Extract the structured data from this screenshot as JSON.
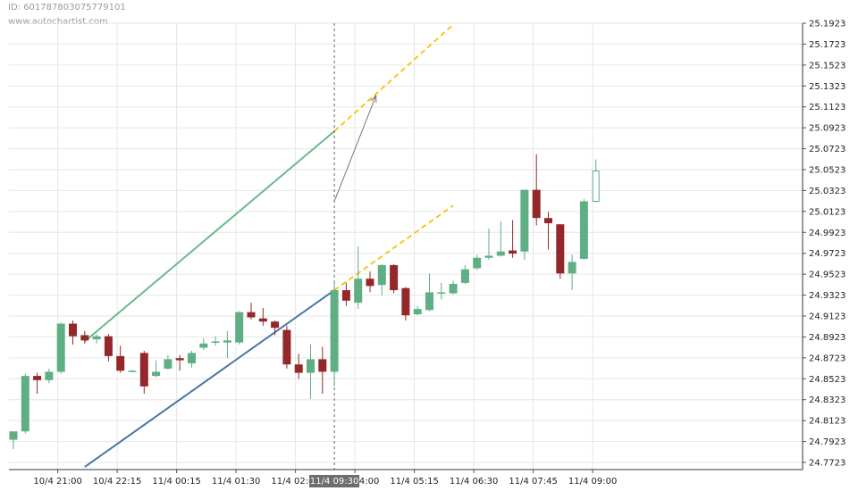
{
  "header": {
    "id_text": "ID: 601787803075779101",
    "site": "www.autochartist.com"
  },
  "colors": {
    "bull": "#5fae84",
    "bear": "#93272a",
    "upper_line": "#6ab88e",
    "lower_line": "#4a76a8",
    "projection": "#f5c400",
    "grid": "#e6e6e6"
  },
  "chart_data": {
    "type": "candlestick",
    "title": "",
    "ylim": [
      24.7723,
      25.1923
    ],
    "y_ticks": [
      "25.1923",
      "25.1723",
      "25.1523",
      "25.1323",
      "25.1123",
      "25.0923",
      "25.0723",
      "25.0523",
      "25.0323",
      "25.0123",
      "24.9923",
      "24.9723",
      "24.9523",
      "24.9323",
      "24.9123",
      "24.8923",
      "24.8723",
      "24.8523",
      "24.8323",
      "24.8123",
      "24.7923",
      "24.7723"
    ],
    "x_ticks": [
      "10/4 21:00",
      "10/4 22:15",
      "11/4 00:15",
      "11/4 01:30",
      "11/4 02:45",
      "11/4 04:00",
      "11/4 05:15",
      "11/4 06:30",
      "11/4 07:45",
      "11/4 09:00"
    ],
    "current_time_label": "11/4 09:30",
    "candles": [
      {
        "o": 24.794,
        "h": 24.8,
        "l": 24.785,
        "c": 24.802
      },
      {
        "o": 24.802,
        "h": 24.857,
        "l": 24.8,
        "c": 24.855
      },
      {
        "o": 24.855,
        "h": 24.858,
        "l": 24.838,
        "c": 24.851
      },
      {
        "o": 24.851,
        "h": 24.862,
        "l": 24.848,
        "c": 24.859
      },
      {
        "o": 24.859,
        "h": 24.906,
        "l": 24.857,
        "c": 24.905
      },
      {
        "o": 24.905,
        "h": 24.908,
        "l": 24.885,
        "c": 24.893
      },
      {
        "o": 24.894,
        "h": 24.898,
        "l": 24.886,
        "c": 24.889
      },
      {
        "o": 24.89,
        "h": 24.895,
        "l": 24.886,
        "c": 24.893
      },
      {
        "o": 24.893,
        "h": 24.895,
        "l": 24.869,
        "c": 24.874
      },
      {
        "o": 24.874,
        "h": 24.884,
        "l": 24.858,
        "c": 24.86
      },
      {
        "o": 24.86,
        "h": 24.861,
        "l": 24.859,
        "c": 24.86
      },
      {
        "o": 24.877,
        "h": 24.879,
        "l": 24.838,
        "c": 24.845
      },
      {
        "o": 24.855,
        "h": 24.87,
        "l": 24.854,
        "c": 24.859
      },
      {
        "o": 24.862,
        "h": 24.875,
        "l": 24.861,
        "c": 24.871
      },
      {
        "o": 24.872,
        "h": 24.875,
        "l": 24.86,
        "c": 24.87
      },
      {
        "o": 24.867,
        "h": 24.879,
        "l": 24.863,
        "c": 24.877
      },
      {
        "o": 24.882,
        "h": 24.891,
        "l": 24.88,
        "c": 24.886
      },
      {
        "o": 24.888,
        "h": 24.893,
        "l": 24.884,
        "c": 24.888
      },
      {
        "o": 24.887,
        "h": 24.898,
        "l": 24.872,
        "c": 24.889
      },
      {
        "o": 24.887,
        "h": 24.917,
        "l": 24.885,
        "c": 24.916
      },
      {
        "o": 24.916,
        "h": 24.925,
        "l": 24.909,
        "c": 24.911
      },
      {
        "o": 24.91,
        "h": 24.92,
        "l": 24.903,
        "c": 24.907
      },
      {
        "o": 24.907,
        "h": 24.908,
        "l": 24.894,
        "c": 24.901
      },
      {
        "o": 24.899,
        "h": 24.903,
        "l": 24.862,
        "c": 24.866
      },
      {
        "o": 24.866,
        "h": 24.876,
        "l": 24.852,
        "c": 24.858
      },
      {
        "o": 24.858,
        "h": 24.885,
        "l": 24.833,
        "c": 24.871
      },
      {
        "o": 24.871,
        "h": 24.883,
        "l": 24.838,
        "c": 24.859
      },
      {
        "o": 24.859,
        "h": 24.946,
        "l": 24.845,
        "c": 24.937
      },
      {
        "o": 24.937,
        "h": 24.944,
        "l": 24.922,
        "c": 24.927
      },
      {
        "o": 24.925,
        "h": 24.979,
        "l": 24.919,
        "c": 24.948
      },
      {
        "o": 24.948,
        "h": 24.955,
        "l": 24.935,
        "c": 24.941
      },
      {
        "o": 24.942,
        "h": 24.962,
        "l": 24.932,
        "c": 24.961
      },
      {
        "o": 24.961,
        "h": 24.962,
        "l": 24.934,
        "c": 24.937
      },
      {
        "o": 24.939,
        "h": 24.94,
        "l": 24.908,
        "c": 24.913
      },
      {
        "o": 24.914,
        "h": 24.922,
        "l": 24.913,
        "c": 24.919
      },
      {
        "o": 24.918,
        "h": 24.953,
        "l": 24.917,
        "c": 24.935
      },
      {
        "o": 24.934,
        "h": 24.944,
        "l": 24.928,
        "c": 24.935
      },
      {
        "o": 24.934,
        "h": 24.946,
        "l": 24.933,
        "c": 24.943
      },
      {
        "o": 24.944,
        "h": 24.961,
        "l": 24.943,
        "c": 24.957
      },
      {
        "o": 24.958,
        "h": 24.971,
        "l": 24.956,
        "c": 24.968
      },
      {
        "o": 24.968,
        "h": 24.996,
        "l": 24.966,
        "c": 24.97
      },
      {
        "o": 24.97,
        "h": 25.003,
        "l": 24.969,
        "c": 24.974
      },
      {
        "o": 24.975,
        "h": 25.004,
        "l": 24.968,
        "c": 24.972
      },
      {
        "o": 24.974,
        "h": 25.033,
        "l": 24.966,
        "c": 25.033
      },
      {
        "o": 25.033,
        "h": 25.067,
        "l": 24.999,
        "c": 25.006
      },
      {
        "o": 25.006,
        "h": 25.012,
        "l": 24.976,
        "c": 25.001
      },
      {
        "o": 25.0,
        "h": 25.0,
        "l": 24.948,
        "c": 24.953
      },
      {
        "o": 24.953,
        "h": 24.971,
        "l": 24.937,
        "c": 24.964
      },
      {
        "o": 24.967,
        "h": 25.024,
        "l": 24.966,
        "c": 25.022
      }
    ],
    "projected_candle": {
      "o": 25.022,
      "h": 25.062,
      "l": 25.021,
      "c": 25.051
    },
    "channel": {
      "upper": {
        "x": [
          6,
          27
        ],
        "y": [
          24.888,
          25.089
        ]
      },
      "lower": {
        "x": [
          6,
          27
        ],
        "y": [
          24.768,
          24.937
        ]
      },
      "projection_upper": {
        "x": [
          27,
          37
        ],
        "y": [
          25.089,
          25.191
        ]
      },
      "projection_lower": {
        "x": [
          27,
          37
        ],
        "y": [
          24.937,
          25.018
        ]
      },
      "target_arrow": {
        "x": [
          27,
          30.5
        ],
        "y": [
          25.022,
          25.123
        ]
      }
    }
  }
}
